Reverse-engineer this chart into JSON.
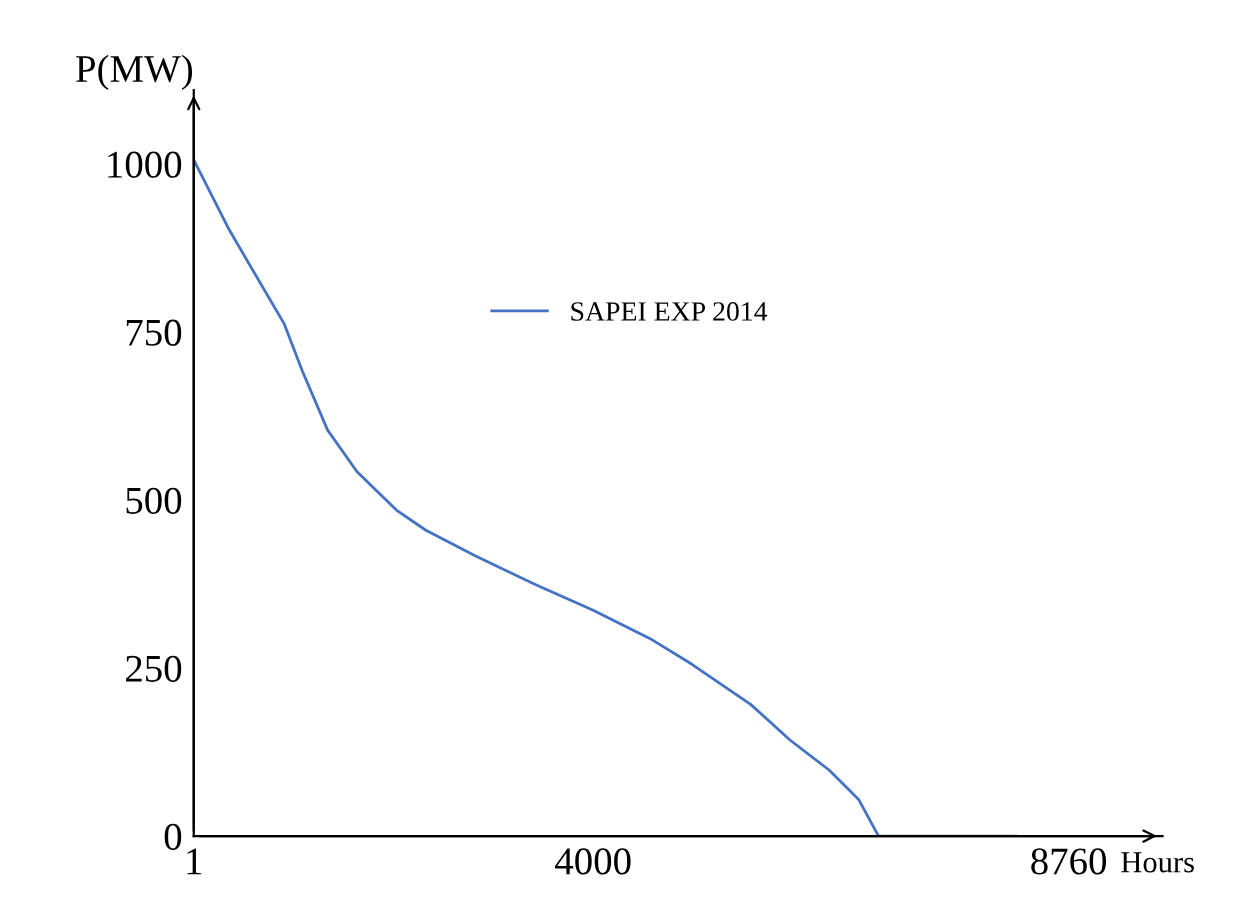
{
  "chart_data": {
    "type": "line",
    "xlabel": "Hours",
    "ylabel": "P(MW)",
    "xlim": [
      1,
      9700
    ],
    "ylim": [
      0,
      1110
    ],
    "xticks": [
      1,
      4000,
      8760
    ],
    "yticks": [
      0,
      250,
      500,
      750,
      1000
    ],
    "series": [
      {
        "name": "SAPEI EXP 2014",
        "color": "#4472c4",
        "x": [
          1,
          356,
          651,
          907,
          1085,
          1341,
          1636,
          2030,
          2325,
          2818,
          3409,
          4000,
          4591,
          4985,
          5576,
          5970,
          6364,
          6660,
          6857,
          8236
        ],
        "values": [
          1006,
          902,
          827,
          762,
          693,
          604,
          542,
          485,
          455,
          417,
          375,
          336,
          292,
          256,
          196,
          143,
          98,
          54,
          0,
          0
        ]
      }
    ],
    "legend": "center",
    "grid": false
  }
}
